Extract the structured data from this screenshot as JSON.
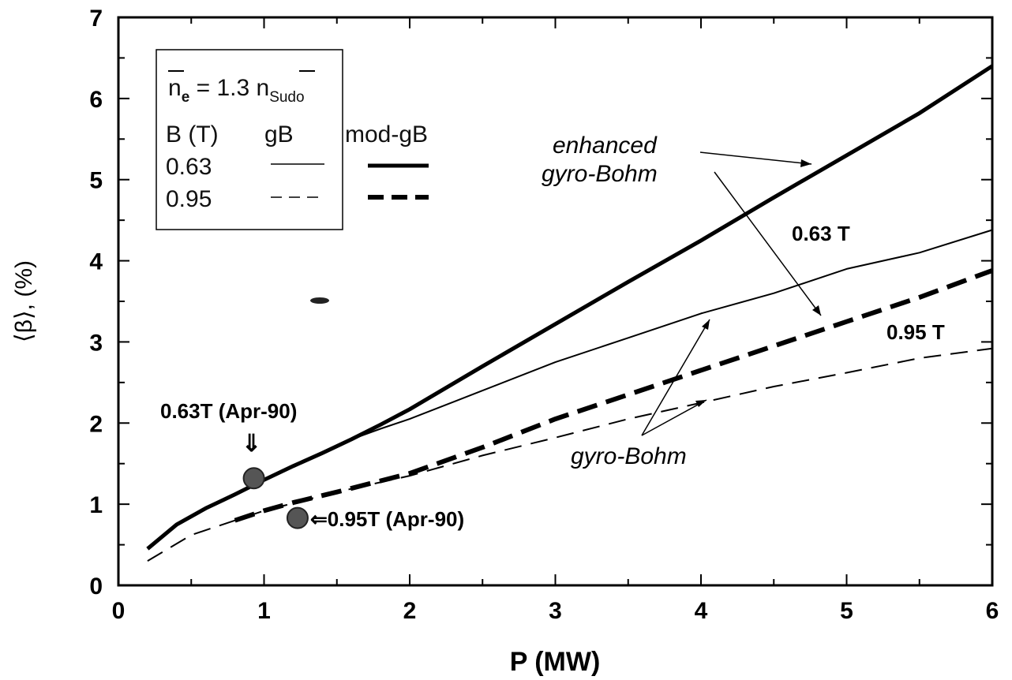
{
  "chart_data": {
    "type": "line",
    "xlabel": "P  (MW)",
    "ylabel": "⟨β⟩, (%)",
    "xlim": [
      0,
      6
    ],
    "ylim": [
      0,
      7
    ],
    "xticks": [
      "0",
      "1",
      "2",
      "3",
      "4",
      "5",
      "6"
    ],
    "yticks": [
      "0",
      "1",
      "2",
      "3",
      "4",
      "5",
      "6",
      "7"
    ],
    "grid": false,
    "legend": {
      "placement": "top-left",
      "density_label": "n_e = 1.3 n_Sudo",
      "density_main": "n",
      "density_sub_e": "e",
      "density_mid": " = 1.3 ",
      "density_sub_sudo": "Sudo",
      "header_b": "B (T)",
      "header_gb": "gB",
      "header_modgb": "mod-gB",
      "row1_b": "0.63",
      "row2_b": "0.95"
    },
    "series": [
      {
        "x": [
          0.2,
          0.4,
          0.6,
          0.8,
          1.0,
          1.2,
          1.4,
          1.6,
          1.8,
          2.0,
          2.5,
          3.0,
          3.5,
          4.0,
          4.5,
          5.0,
          5.5,
          6.0
        ],
        "values": [
          0.45,
          0.75,
          0.95,
          1.12,
          1.3,
          1.47,
          1.63,
          1.8,
          1.93,
          2.05,
          2.4,
          2.75,
          3.05,
          3.35,
          3.6,
          3.9,
          4.1,
          4.38
        ]
      },
      {
        "x": [
          0.2,
          0.4,
          0.6,
          0.8,
          1.0,
          1.2,
          1.4,
          1.6,
          1.8,
          2.0,
          2.5,
          3.0,
          3.5,
          4.0,
          4.5,
          5.0,
          5.5,
          6.0
        ],
        "values": [
          0.45,
          0.75,
          0.95,
          1.12,
          1.3,
          1.47,
          1.63,
          1.8,
          1.98,
          2.17,
          2.7,
          3.22,
          3.74,
          4.25,
          4.78,
          5.3,
          5.82,
          6.4
        ]
      },
      {
        "x": [
          0.2,
          0.5,
          1.0,
          1.5,
          2.0,
          2.5,
          3.0,
          3.5,
          4.0,
          4.5,
          5.0,
          5.5,
          6.0
        ],
        "values": [
          0.3,
          0.62,
          0.92,
          1.15,
          1.35,
          1.6,
          1.82,
          2.05,
          2.25,
          2.45,
          2.62,
          2.8,
          2.92
        ]
      },
      {
        "x": [
          0.8,
          1.0,
          1.2,
          1.5,
          2.0,
          2.5,
          3.0,
          3.5,
          4.0,
          4.5,
          5.0,
          5.5,
          6.0
        ],
        "values": [
          0.8,
          0.92,
          1.02,
          1.15,
          1.38,
          1.7,
          2.05,
          2.35,
          2.65,
          2.95,
          3.25,
          3.55,
          3.88
        ]
      }
    ],
    "points": [
      {
        "x": 0.93,
        "y": 1.32,
        "label": "0.63T (Apr-90)"
      },
      {
        "x": 1.23,
        "y": 0.83,
        "label": "⇐0.95T (Apr-90)"
      }
    ],
    "annotations": {
      "enhanced_line1": "enhanced",
      "enhanced_line2": "gyro-Bohm",
      "gyro_bohm": "gyro-Bohm",
      "label_063": "0.63 T",
      "label_095": "0.95 T",
      "arrow_down": "⇓"
    }
  }
}
